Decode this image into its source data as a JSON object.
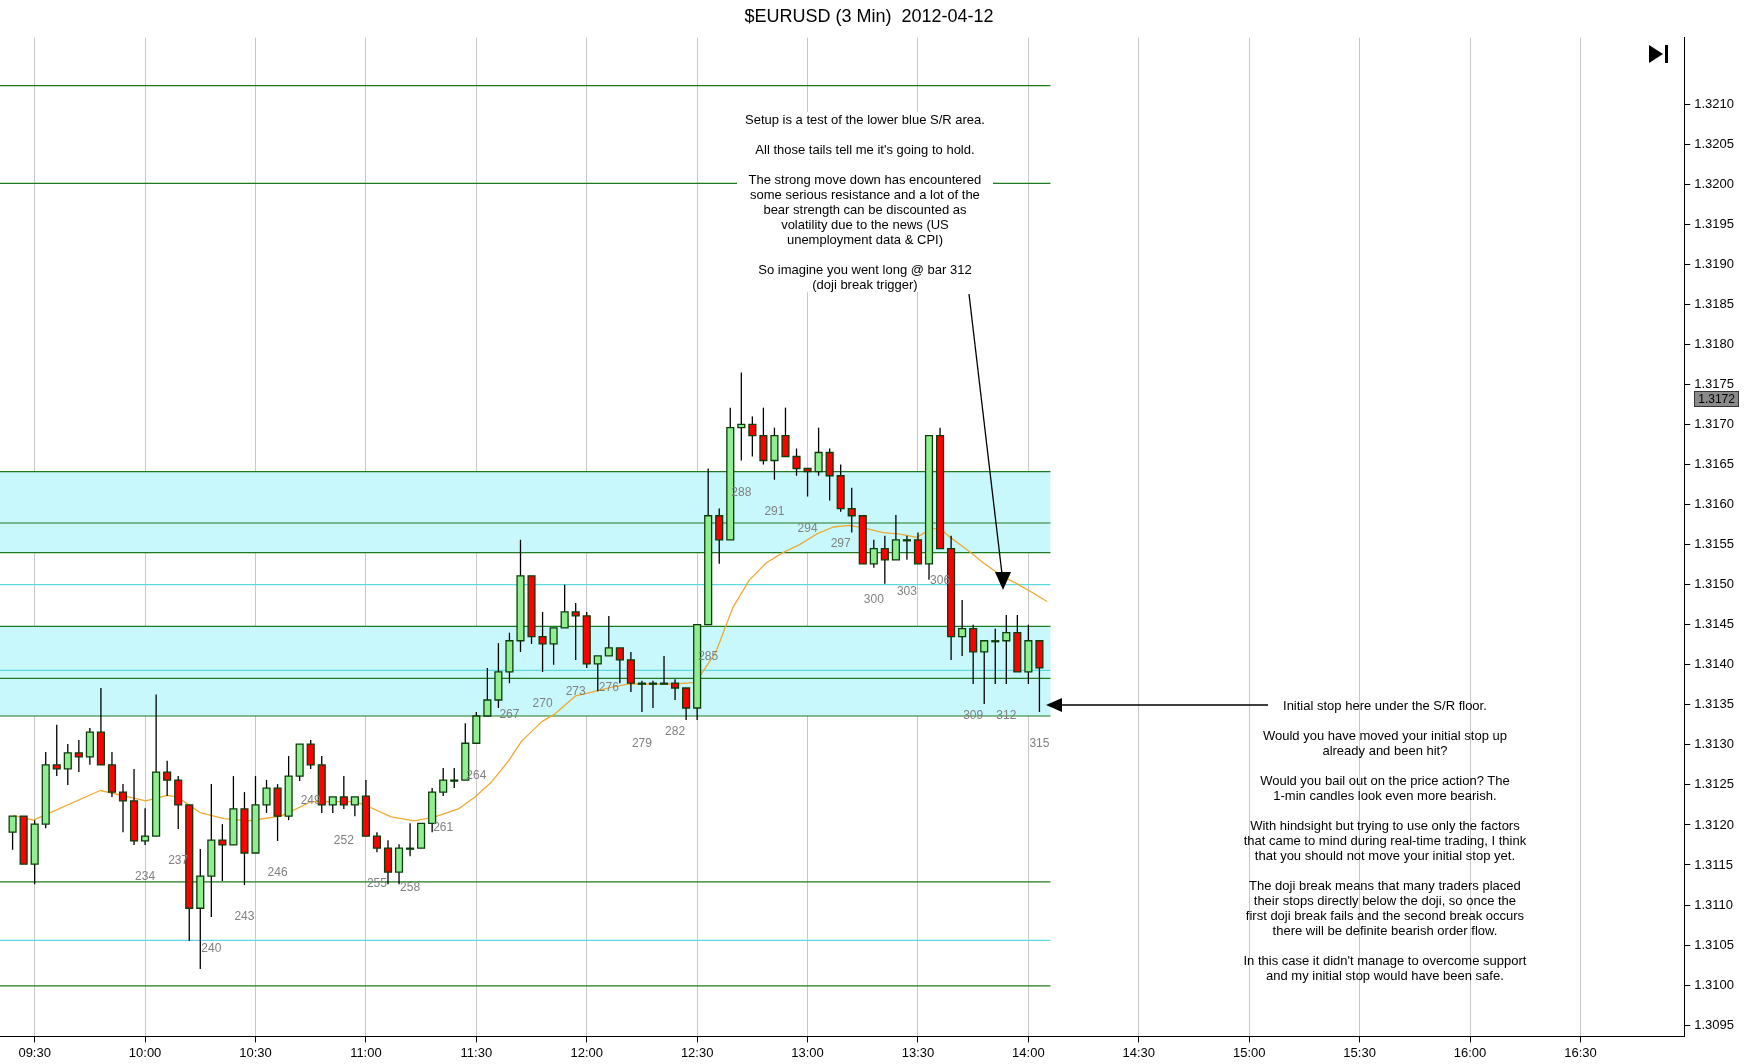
{
  "chart_data": {
    "type": "candlestick",
    "title": "$EURUSD (3 Min)  2012-04-12",
    "x": [
      9.4,
      9.45,
      9.5,
      9.55,
      9.6,
      9.65,
      9.7,
      9.75,
      9.8,
      9.85,
      9.9,
      9.95,
      10,
      10.05,
      10.1,
      10.15,
      10.2,
      10.25,
      10.3,
      10.35,
      10.4,
      10.45,
      10.5,
      10.55,
      10.6,
      10.65,
      10.7,
      10.75,
      10.8,
      10.85,
      10.9,
      10.95,
      11,
      11.05,
      11.1,
      11.15,
      11.2,
      11.25,
      11.3,
      11.35,
      11.4,
      11.45,
      11.5,
      11.55,
      11.6,
      11.65,
      11.7,
      11.75,
      11.8,
      11.85,
      11.9,
      11.95,
      12,
      12.05,
      12.1,
      12.15,
      12.2,
      12.25,
      12.3,
      12.35,
      12.4,
      12.45,
      12.5,
      12.55,
      12.6,
      12.65,
      12.7,
      12.75,
      12.8,
      12.85,
      12.9,
      12.95,
      13,
      13.05,
      13.1,
      13.15,
      13.2,
      13.25,
      13.3,
      13.35,
      13.4,
      13.45,
      13.5,
      13.55,
      13.6,
      13.65,
      13.7,
      13.75,
      13.8,
      13.85,
      13.9,
      13.95,
      14,
      14.05
    ],
    "ohlc": [
      [
        1.31191,
        1.31211,
        1.31169,
        1.31211
      ],
      [
        1.31211,
        1.31211,
        1.31151,
        1.31151
      ],
      [
        1.31151,
        1.31206,
        1.31126,
        1.31201
      ],
      [
        1.31201,
        1.31291,
        1.31196,
        1.31275
      ],
      [
        1.31275,
        1.31325,
        1.31261,
        1.3127
      ],
      [
        1.3127,
        1.31301,
        1.3125,
        1.3129
      ],
      [
        1.3129,
        1.31306,
        1.31266,
        1.31285
      ],
      [
        1.31285,
        1.31321,
        1.31275,
        1.31316
      ],
      [
        1.31316,
        1.31371,
        1.31275,
        1.31275
      ],
      [
        1.31275,
        1.31291,
        1.31235,
        1.31241
      ],
      [
        1.31241,
        1.31251,
        1.31191,
        1.3123
      ],
      [
        1.3123,
        1.3127,
        1.31175,
        1.3118
      ],
      [
        1.3118,
        1.31221,
        1.31175,
        1.31186
      ],
      [
        1.31186,
        1.31363,
        1.31186,
        1.31266
      ],
      [
        1.31266,
        1.3128,
        1.31236,
        1.31256
      ],
      [
        1.31256,
        1.31261,
        1.31195,
        1.31225
      ],
      [
        1.31225,
        1.31225,
        1.31055,
        1.31096
      ],
      [
        1.31096,
        1.3117,
        1.3102,
        1.31136
      ],
      [
        1.31136,
        1.31251,
        1.31085,
        1.31181
      ],
      [
        1.31181,
        1.31201,
        1.3113,
        1.31175
      ],
      [
        1.31175,
        1.31261,
        1.31175,
        1.3122
      ],
      [
        1.3122,
        1.31241,
        1.31125,
        1.31165
      ],
      [
        1.31165,
        1.31261,
        1.31165,
        1.31225
      ],
      [
        1.31225,
        1.31256,
        1.31215,
        1.31246
      ],
      [
        1.31246,
        1.31251,
        1.3118,
        1.31211
      ],
      [
        1.31211,
        1.31286,
        1.31206,
        1.31261
      ],
      [
        1.31261,
        1.31301,
        1.31255,
        1.31301
      ],
      [
        1.31301,
        1.31306,
        1.3127,
        1.31275
      ],
      [
        1.31275,
        1.31286,
        1.31215,
        1.31225
      ],
      [
        1.31225,
        1.31235,
        1.31215,
        1.31235
      ],
      [
        1.31235,
        1.31261,
        1.3122,
        1.31225
      ],
      [
        1.31225,
        1.31235,
        1.31211,
        1.31235
      ],
      [
        1.31236,
        1.31256,
        1.31186,
        1.31186
      ],
      [
        1.31186,
        1.31191,
        1.31166,
        1.31171
      ],
      [
        1.31171,
        1.31181,
        1.31126,
        1.31141
      ],
      [
        1.31141,
        1.31176,
        1.31126,
        1.31171
      ],
      [
        1.31171,
        1.31202,
        1.31161,
        1.31171
      ],
      [
        1.31171,
        1.31202,
        1.31171,
        1.31202
      ],
      [
        1.31202,
        1.31246,
        1.31191,
        1.31241
      ],
      [
        1.31241,
        1.31271,
        1.31236,
        1.31256
      ],
      [
        1.31256,
        1.31271,
        1.31246,
        1.31256
      ],
      [
        1.31256,
        1.31327,
        1.31256,
        1.31302
      ],
      [
        1.31302,
        1.31341,
        1.31302,
        1.31336
      ],
      [
        1.31336,
        1.31396,
        1.31336,
        1.31356
      ],
      [
        1.31356,
        1.31427,
        1.31346,
        1.31391
      ],
      [
        1.31391,
        1.3144,
        1.31377,
        1.3143
      ],
      [
        1.3143,
        1.31556,
        1.31416,
        1.31511
      ],
      [
        1.31511,
        1.31511,
        1.31426,
        1.31435
      ],
      [
        1.31435,
        1.31466,
        1.31391,
        1.31426
      ],
      [
        1.31426,
        1.31446,
        1.314,
        1.31446
      ],
      [
        1.31446,
        1.315,
        1.31446,
        1.31466
      ],
      [
        1.31466,
        1.31477,
        1.31406,
        1.31461
      ],
      [
        1.31461,
        1.31466,
        1.31396,
        1.31401
      ],
      [
        1.31401,
        1.31411,
        1.31367,
        1.31411
      ],
      [
        1.31411,
        1.31461,
        1.31411,
        1.31421
      ],
      [
        1.31421,
        1.31421,
        1.31377,
        1.31406
      ],
      [
        1.31406,
        1.31416,
        1.31366,
        1.31377
      ],
      [
        1.31377,
        1.3138,
        1.31341,
        1.31377
      ],
      [
        1.31377,
        1.3138,
        1.31346,
        1.31377
      ],
      [
        1.31377,
        1.31411,
        1.31377,
        1.31377
      ],
      [
        1.31377,
        1.31382,
        1.31356,
        1.31371
      ],
      [
        1.31371,
        1.31371,
        1.31331,
        1.31346
      ],
      [
        1.31346,
        1.3145,
        1.31331,
        1.3145
      ],
      [
        1.3145,
        1.31645,
        1.3145,
        1.31586
      ],
      [
        1.31586,
        1.31595,
        1.31526,
        1.31556
      ],
      [
        1.31556,
        1.31721,
        1.31556,
        1.31696
      ],
      [
        1.31696,
        1.31765,
        1.31655,
        1.317
      ],
      [
        1.317,
        1.3171,
        1.3166,
        1.31686
      ],
      [
        1.31686,
        1.31721,
        1.3165,
        1.31655
      ],
      [
        1.31655,
        1.31696,
        1.31631,
        1.31686
      ],
      [
        1.31686,
        1.31721,
        1.3166,
        1.3166
      ],
      [
        1.3166,
        1.3167,
        1.31636,
        1.31645
      ],
      [
        1.31645,
        1.31645,
        1.3161,
        1.31641
      ],
      [
        1.31641,
        1.31696,
        1.31636,
        1.31665
      ],
      [
        1.31665,
        1.3167,
        1.31605,
        1.31636
      ],
      [
        1.31636,
        1.3165,
        1.31591,
        1.31595
      ],
      [
        1.31595,
        1.31621,
        1.31565,
        1.31586
      ],
      [
        1.31586,
        1.31586,
        1.31526,
        1.31526
      ],
      [
        1.31526,
        1.31556,
        1.31521,
        1.31545
      ],
      [
        1.31545,
        1.31561,
        1.31501,
        1.31531
      ],
      [
        1.31531,
        1.31587,
        1.31531,
        1.31556
      ],
      [
        1.31556,
        1.31561,
        1.31531,
        1.31556
      ],
      [
        1.31556,
        1.31565,
        1.31526,
        1.31526
      ],
      [
        1.31526,
        1.31686,
        1.31506,
        1.31686
      ],
      [
        1.31686,
        1.31696,
        1.31545,
        1.31545
      ],
      [
        1.31545,
        1.31561,
        1.31406,
        1.31435
      ],
      [
        1.31435,
        1.31481,
        1.31411,
        1.31445
      ],
      [
        1.31445,
        1.3145,
        1.31376,
        1.31416
      ],
      [
        1.31416,
        1.3143,
        1.31351,
        1.3143
      ],
      [
        1.3143,
        1.31445,
        1.31376,
        1.3143
      ],
      [
        1.3143,
        1.31462,
        1.31376,
        1.3144
      ],
      [
        1.3144,
        1.31462,
        1.31391,
        1.31391
      ],
      [
        1.31391,
        1.3145,
        1.31376,
        1.3143
      ],
      [
        1.3143,
        1.3143,
        1.31341,
        1.31396
      ]
    ],
    "colors": [
      "#90ee90",
      "#ff0000",
      "#90ee90",
      "#90ee90",
      "#ff0000",
      "#90ee90",
      "#ff0000",
      "#90ee90",
      "#ff0000",
      "#ff0000",
      "#ff0000",
      "#ff0000",
      "#90ee90",
      "#90ee90",
      "#ff0000",
      "#ff0000",
      "#ff0000",
      "#90ee90",
      "#90ee90",
      "#ff0000",
      "#90ee90",
      "#ff0000",
      "#90ee90",
      "#90ee90",
      "#ff0000",
      "#90ee90",
      "#90ee90",
      "#ff0000",
      "#ff0000",
      "#90ee90",
      "#ff0000",
      "#90ee90",
      "#ff0000",
      "#ff0000",
      "#ff0000",
      "#90ee90",
      "#90ee90",
      "#90ee90",
      "#90ee90",
      "#90ee90",
      "#90ee90",
      "#90ee90",
      "#90ee90",
      "#90ee90",
      "#90ee90",
      "#90ee90",
      "#90ee90",
      "#ff0000",
      "#ff0000",
      "#90ee90",
      "#90ee90",
      "#ff0000",
      "#ff0000",
      "#90ee90",
      "#90ee90",
      "#ff0000",
      "#ff0000",
      "#90ee90",
      "#90ee90",
      "#90ee90",
      "#ff0000",
      "#ff0000",
      "#90ee90",
      "#90ee90",
      "#ff0000",
      "#90ee90",
      "#90ee90",
      "#ff0000",
      "#ff0000",
      "#90ee90",
      "#ff0000",
      "#ff0000",
      "#ff0000",
      "#90ee90",
      "#ff0000",
      "#ff0000",
      "#ff0000",
      "#ff0000",
      "#90ee90",
      "#ff0000",
      "#90ee90",
      "#90ee90",
      "#ff0000",
      "#90ee90",
      "#ff0000",
      "#ff0000",
      "#90ee90",
      "#ff0000",
      "#90ee90",
      "#90ee90",
      "#90ee90",
      "#ff0000",
      "#90ee90",
      "#ff0000"
    ],
    "series": [
      {
        "type": "line",
        "color": "#f0a830",
        "x": [
          9.403,
          9.494,
          9.797,
          10.003,
          10.1,
          10.146,
          10.252,
          10.358,
          10.464,
          10.615,
          10.752,
          10.949,
          11.003,
          11.115,
          11.22,
          11.312,
          11.419,
          11.494,
          11.57,
          11.646,
          11.706,
          11.797,
          11.858,
          11.949,
          12.01,
          12.1,
          12.191,
          12.403,
          12.494,
          12.585,
          12.661,
          12.737,
          12.812,
          12.888,
          12.964,
          13.04,
          13.116,
          13.191,
          13.267,
          13.343,
          13.419,
          13.494,
          13.563,
          13.6,
          13.646,
          13.721,
          13.797,
          13.873,
          13.949,
          14.025,
          14.085
        ],
        "values": [
          1.31212,
          1.31206,
          1.31243,
          1.3123,
          1.31237,
          1.31235,
          1.31215,
          1.31208,
          1.31205,
          1.31211,
          1.31229,
          1.31229,
          1.31224,
          1.3121,
          1.31205,
          1.3121,
          1.3122,
          1.31235,
          1.31254,
          1.3128,
          1.31305,
          1.31329,
          1.31339,
          1.31361,
          1.31365,
          1.31371,
          1.31376,
          1.31376,
          1.31378,
          1.31416,
          1.31471,
          1.31506,
          1.31527,
          1.3154,
          1.3155,
          1.31563,
          1.31572,
          1.31574,
          1.3157,
          1.31565,
          1.31563,
          1.31559,
          1.3157,
          1.3157,
          1.31559,
          1.31544,
          1.31527,
          1.31512,
          1.31501,
          1.31489,
          1.31479
        ]
      }
    ],
    "xlim": [
      9.343,
      16.97
    ],
    "xticks": [
      {
        "value": 9.5,
        "label": "09:30"
      },
      {
        "value": 10,
        "label": "10:00"
      },
      {
        "value": 10.5,
        "label": "10:30"
      },
      {
        "value": 11,
        "label": "11:00"
      },
      {
        "value": 11.5,
        "label": "11:30"
      },
      {
        "value": 12,
        "label": "12:00"
      },
      {
        "value": 12.5,
        "label": "12:30"
      },
      {
        "value": 13,
        "label": "13:00"
      },
      {
        "value": 13.5,
        "label": "13:30"
      },
      {
        "value": 14,
        "label": "14:00"
      },
      {
        "value": 14.5,
        "label": "14:30"
      },
      {
        "value": 15,
        "label": "15:00"
      },
      {
        "value": 15.5,
        "label": "15:30"
      },
      {
        "value": 16,
        "label": "16:00"
      },
      {
        "value": 16.5,
        "label": "16:30"
      }
    ],
    "ylim": [
      1.30936,
      1.32183
    ],
    "yticks": [
      {
        "value": 1.3095,
        "label": "1.3095"
      },
      {
        "value": 1.31,
        "label": "1.3100"
      },
      {
        "value": 1.3105,
        "label": "1.3105"
      },
      {
        "value": 1.311,
        "label": "1.3110"
      },
      {
        "value": 1.3115,
        "label": "1.3115"
      },
      {
        "value": 1.312,
        "label": "1.3120"
      },
      {
        "value": 1.3125,
        "label": "1.3125"
      },
      {
        "value": 1.313,
        "label": "1.3130"
      },
      {
        "value": 1.3135,
        "label": "1.3135"
      },
      {
        "value": 1.314,
        "label": "1.3140"
      },
      {
        "value": 1.3145,
        "label": "1.3145"
      },
      {
        "value": 1.315,
        "label": "1.3150"
      },
      {
        "value": 1.3155,
        "label": "1.3155"
      },
      {
        "value": 1.316,
        "label": "1.3160"
      },
      {
        "value": 1.3165,
        "label": "1.3165"
      },
      {
        "value": 1.317,
        "label": "1.3170"
      },
      {
        "value": 1.3175,
        "label": "1.3175"
      },
      {
        "value": 1.318,
        "label": "1.3180"
      },
      {
        "value": 1.3185,
        "label": "1.3185"
      },
      {
        "value": 1.319,
        "label": "1.3190"
      },
      {
        "value": 1.3195,
        "label": "1.3195"
      },
      {
        "value": 1.32,
        "label": "1.3200"
      },
      {
        "value": 1.3205,
        "label": "1.3205"
      },
      {
        "value": 1.321,
        "label": "1.3210"
      }
    ],
    "grid": "x",
    "legend": false,
    "bands": [
      {
        "axis": "y",
        "from": 1.3154,
        "to": 1.31641,
        "color": "#c8f8fc"
      },
      {
        "axis": "y",
        "from": 1.31336,
        "to": 1.31448,
        "color": "#c8f8fc"
      }
    ],
    "ref_lines": [
      {
        "axis": "y",
        "value": 1.32123,
        "color": "#1e7a1e"
      },
      {
        "axis": "y",
        "value": 1.32001,
        "color": "#1e7a1e"
      },
      {
        "axis": "y",
        "value": 1.31641,
        "color": "#1e7a1e"
      },
      {
        "axis": "y",
        "value": 1.31577,
        "color": "#1e7a1e"
      },
      {
        "axis": "y",
        "value": 1.3154,
        "color": "#1e7a1e"
      },
      {
        "axis": "y",
        "value": 1.315,
        "color": "#5fd8e6"
      },
      {
        "axis": "y",
        "value": 1.31448,
        "color": "#1e7a1e"
      },
      {
        "axis": "y",
        "value": 1.31393,
        "color": "#5fd8e6"
      },
      {
        "axis": "y",
        "value": 1.31383,
        "color": "#1e7a1e"
      },
      {
        "axis": "y",
        "value": 1.31336,
        "color": "#1e7a1e"
      },
      {
        "axis": "y",
        "value": 1.31129,
        "color": "#1e7a1e"
      },
      {
        "axis": "y",
        "value": 1.31056,
        "color": "#5fd8e6"
      },
      {
        "axis": "y",
        "value": 1.30999,
        "color": "#1e7a1e"
      }
    ],
    "annotations": [
      "Setup is a test of the lower blue S/R area.\n\nAll those tails tell me it's going to hold.\n\nThe strong move down has encountered\nsome serious resistance and a lot of the\nbear strength can be discounted as\nvolatility due to the news (US\nunemployment data & CPI)\n\nSo imagine you went long @ bar 312\n(doji break trigger)",
      "Initial stop here under the S/R floor.\n\nWould you have moved your initial stop up\nalready and been hit?\n\nWould you bail out on the price action? The\n1-min candles look even more bearish.\n\nWith hindsight but trying to use only the factors\nthat came to mind during real-time trading, I think\nthat you should not move your initial stop yet.\n\nThe doji break means that many traders placed\ntheir stops directly below the doji, so once the\nfirst doji break fails and the second break occurs\nthere will be definite bearish order flow.\n\nIn this case it didn't manage to overcome support\nand my initial stop would have been safe.",
      {
        "text": "234",
        "x": 10,
        "y": 1.31175
      },
      {
        "text": "237",
        "x": 10.15,
        "y": 1.31195
      },
      {
        "text": "240",
        "x": 10.3,
        "y": 1.31085
      },
      {
        "text": "243",
        "x": 10.45,
        "y": 1.31125
      },
      {
        "text": "246",
        "x": 10.6,
        "y": 1.3118
      },
      {
        "text": "249",
        "x": 10.75,
        "y": 1.3127
      },
      {
        "text": "252",
        "x": 10.9,
        "y": 1.3122
      },
      {
        "text": "255",
        "x": 11.05,
        "y": 1.31166
      },
      {
        "text": "258",
        "x": 11.2,
        "y": 1.31161
      },
      {
        "text": "261",
        "x": 11.35,
        "y": 1.31236
      },
      {
        "text": "264",
        "x": 11.5,
        "y": 1.31302
      },
      {
        "text": "267",
        "x": 11.65,
        "y": 1.31377
      },
      {
        "text": "270",
        "x": 11.8,
        "y": 1.31391
      },
      {
        "text": "273",
        "x": 11.95,
        "y": 1.31406
      },
      {
        "text": "276",
        "x": 12.1,
        "y": 1.31411
      },
      {
        "text": "279",
        "x": 12.25,
        "y": 1.31341
      },
      {
        "text": "282",
        "x": 12.4,
        "y": 1.31356
      },
      {
        "text": "285",
        "x": 12.55,
        "y": 1.3145
      },
      {
        "text": "288",
        "x": 12.7,
        "y": 1.31655
      },
      {
        "text": "291",
        "x": 12.85,
        "y": 1.31631
      },
      {
        "text": "294",
        "x": 13,
        "y": 1.3161
      },
      {
        "text": "297",
        "x": 13.15,
        "y": 1.31591
      },
      {
        "text": "300",
        "x": 13.3,
        "y": 1.31521
      },
      {
        "text": "303",
        "x": 13.45,
        "y": 1.31531
      },
      {
        "text": "306",
        "x": 13.6,
        "y": 1.31545
      },
      {
        "text": "309",
        "x": 13.75,
        "y": 1.31376
      },
      {
        "text": "312",
        "x": 13.9,
        "y": 1.31376
      },
      {
        "text": "315",
        "x": 14.05,
        "y": 1.31341
      },
      "1.3172"
    ]
  }
}
